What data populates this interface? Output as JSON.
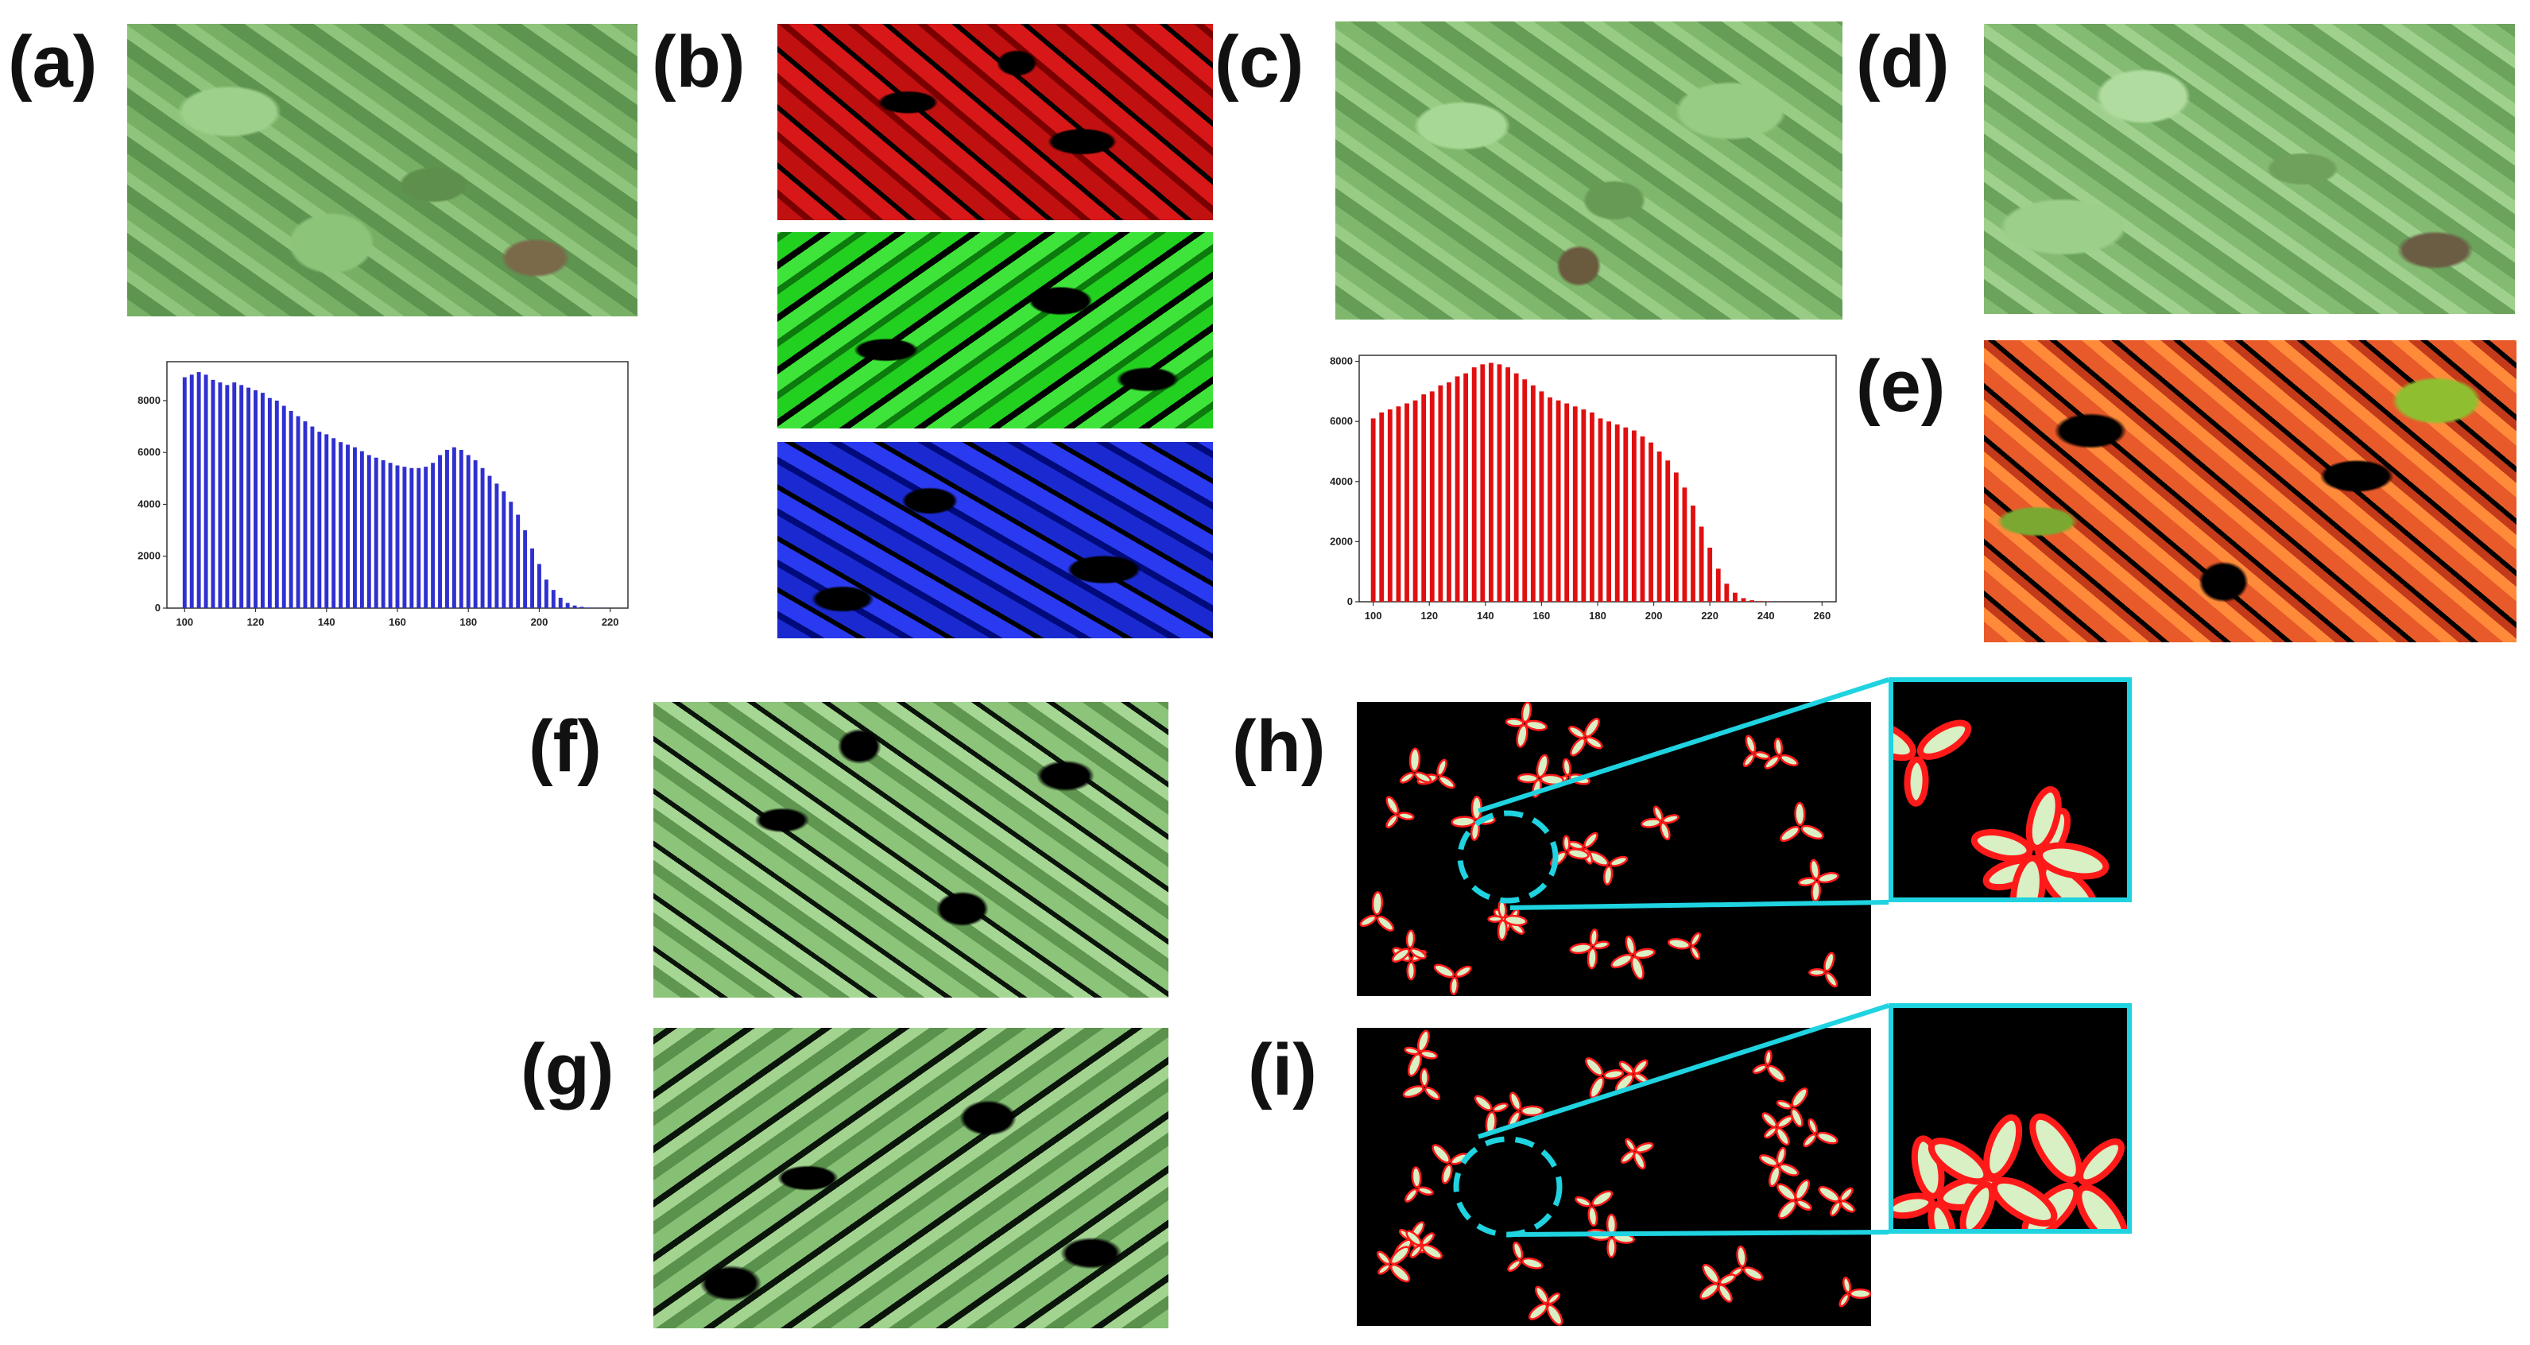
{
  "figure": {
    "labels": {
      "a": "(a)",
      "b": "(b)",
      "c": "(c)",
      "d": "(d)",
      "e": "(e)",
      "f": "(f)",
      "g": "(g)",
      "h": "(h)",
      "i": "(i)"
    }
  },
  "colors": {
    "hist_a": "#3030d0",
    "hist_c": "#e01010",
    "zoom_frame": "#1fd3e0",
    "leaf_outline": "#ff1a1a",
    "leaf_fill": "#d9f0c4"
  },
  "chart_data": [
    {
      "type": "bar",
      "panel": "a",
      "x": [
        100,
        102,
        104,
        106,
        108,
        110,
        112,
        114,
        116,
        118,
        120,
        122,
        124,
        126,
        128,
        130,
        132,
        134,
        136,
        138,
        140,
        142,
        144,
        146,
        148,
        150,
        152,
        154,
        156,
        158,
        160,
        162,
        164,
        166,
        168,
        170,
        172,
        174,
        176,
        178,
        180,
        182,
        184,
        186,
        188,
        190,
        192,
        194,
        196,
        198,
        200,
        202,
        204,
        206,
        208,
        210,
        212,
        214,
        216,
        218,
        220
      ],
      "values": [
        8900,
        9000,
        9100,
        9000,
        8800,
        8700,
        8600,
        8700,
        8600,
        8500,
        8400,
        8300,
        8100,
        8000,
        7800,
        7600,
        7400,
        7200,
        7000,
        6800,
        6700,
        6550,
        6400,
        6300,
        6200,
        6050,
        5900,
        5800,
        5700,
        5600,
        5500,
        5450,
        5400,
        5400,
        5450,
        5600,
        5900,
        6100,
        6200,
        6100,
        5900,
        5700,
        5400,
        5100,
        4800,
        4500,
        4100,
        3600,
        3000,
        2300,
        1700,
        1100,
        700,
        400,
        200,
        100,
        50,
        20,
        10,
        5,
        0
      ],
      "xlim": [
        95,
        225
      ],
      "ylim": [
        0,
        9500
      ],
      "xticks": [
        "100",
        "120",
        "140",
        "160",
        "180",
        "200",
        "220"
      ],
      "yticks": [
        "0",
        "2000",
        "4000",
        "6000",
        "8000"
      ]
    },
    {
      "type": "bar",
      "panel": "c",
      "x": [
        100,
        103,
        106,
        109,
        112,
        115,
        118,
        121,
        124,
        127,
        130,
        133,
        136,
        139,
        142,
        145,
        148,
        151,
        154,
        157,
        160,
        163,
        166,
        169,
        172,
        175,
        178,
        181,
        184,
        187,
        190,
        193,
        196,
        199,
        202,
        205,
        208,
        211,
        214,
        217,
        220,
        223,
        226,
        229,
        232,
        235,
        238,
        241,
        244,
        247,
        250
      ],
      "values": [
        6100,
        6300,
        6400,
        6500,
        6600,
        6700,
        6900,
        7000,
        7200,
        7300,
        7500,
        7600,
        7800,
        7900,
        7950,
        7900,
        7800,
        7600,
        7400,
        7200,
        7000,
        6800,
        6700,
        6600,
        6500,
        6400,
        6300,
        6100,
        6000,
        5900,
        5800,
        5700,
        5500,
        5300,
        5000,
        4700,
        4300,
        3800,
        3200,
        2500,
        1800,
        1100,
        600,
        300,
        120,
        50,
        20,
        10,
        5,
        2,
        0
      ],
      "xlim": [
        95,
        265
      ],
      "ylim": [
        0,
        8200
      ],
      "xticks": [
        "100",
        "120",
        "140",
        "160",
        "180",
        "200",
        "220",
        "240",
        "260"
      ],
      "yticks": [
        "0",
        "2000",
        "4000",
        "6000",
        "8000"
      ]
    }
  ]
}
